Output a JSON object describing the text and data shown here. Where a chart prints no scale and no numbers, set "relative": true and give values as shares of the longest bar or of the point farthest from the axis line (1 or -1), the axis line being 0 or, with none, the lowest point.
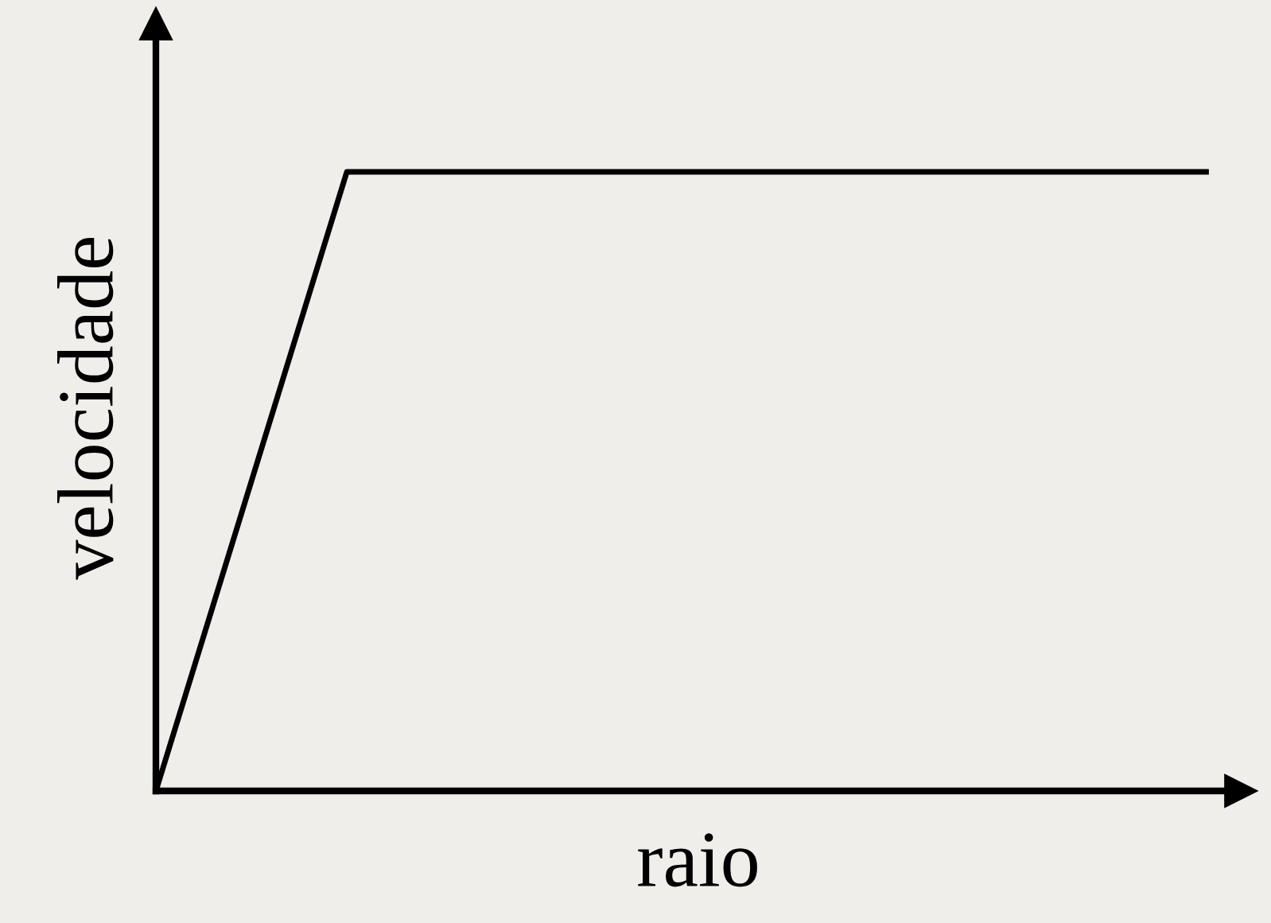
{
  "chart_data": {
    "type": "line",
    "relative": true,
    "xlabel": "raio",
    "ylabel": "velocidade",
    "categories": [
      null,
      null,
      null,
      null,
      null,
      null,
      null,
      null,
      null,
      null,
      null,
      null
    ],
    "series": [
      {
        "color": "#000000",
        "values": [
          0,
          0.5,
          1,
          1,
          1,
          1,
          1,
          1,
          1,
          1,
          1,
          1
        ]
      }
    ],
    "tick_labels": false,
    "legend": false,
    "marker": "none",
    "line_style": "solid"
  }
}
